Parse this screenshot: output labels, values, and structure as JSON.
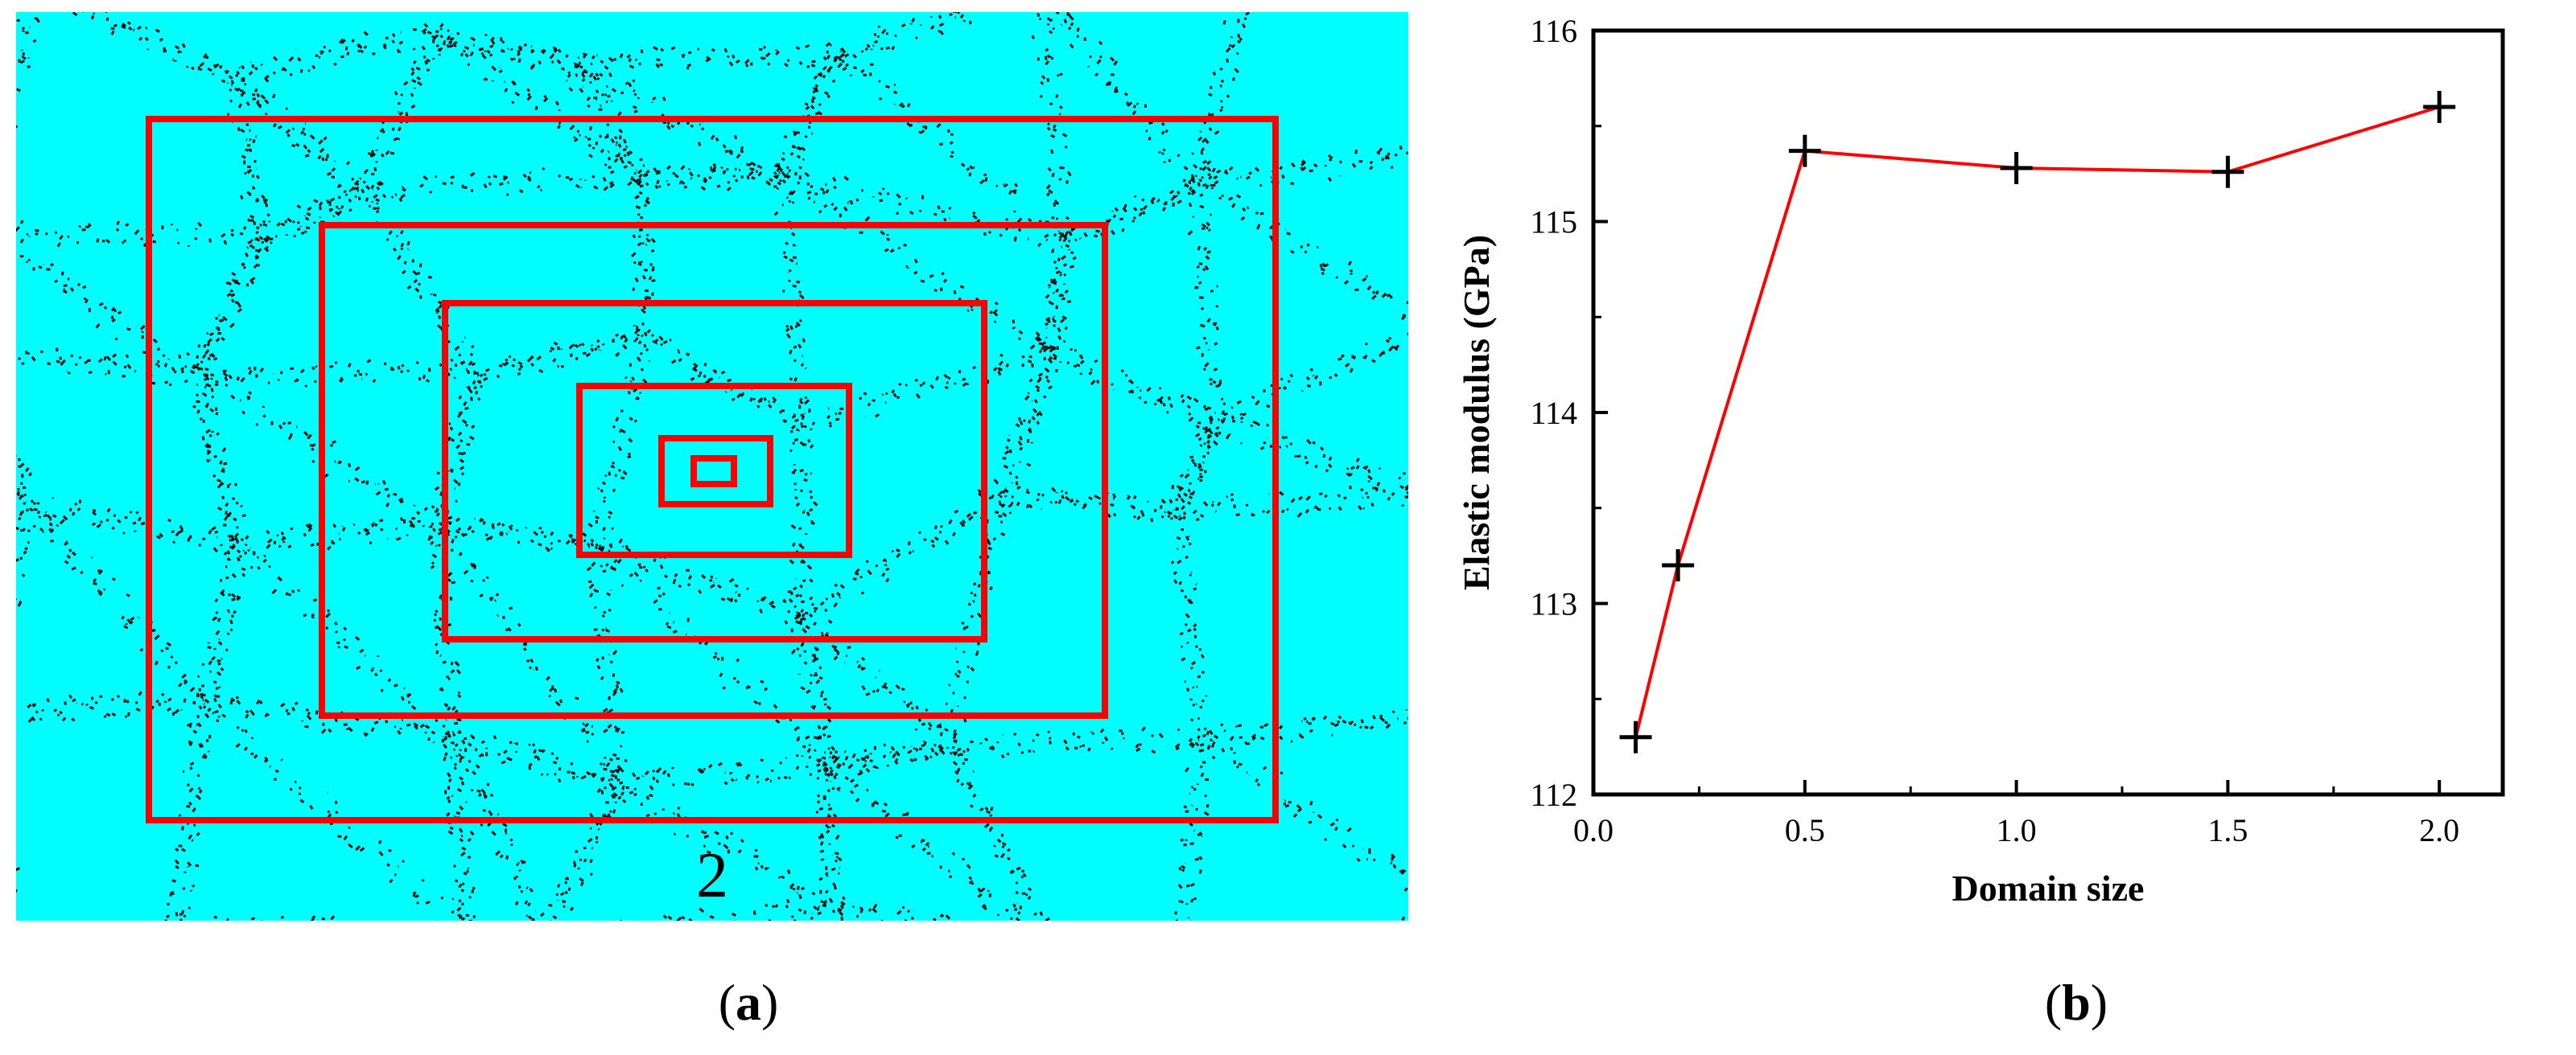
{
  "panel_a": {
    "background_color": "#00ffff",
    "box_color": "#ff0000",
    "label": "2"
  },
  "panel_b": {
    "chart_data": {
      "type": "line",
      "xlabel": "Domain size",
      "ylabel": "Elastic modulus (GPa)",
      "xlim": [
        0.0,
        2.15
      ],
      "ylim": [
        112,
        116
      ],
      "xticks": [
        "0.0",
        "0.5",
        "1.0",
        "1.5",
        "2.0"
      ],
      "yticks": [
        "112",
        "113",
        "114",
        "115",
        "116"
      ],
      "line_color": "#ff0000",
      "marker": "plus",
      "grid": false,
      "x": [
        0.1,
        0.2,
        0.5,
        1.0,
        1.5,
        2.0
      ],
      "y": [
        112.3,
        113.2,
        115.37,
        115.28,
        115.26,
        115.6
      ]
    }
  },
  "captions": {
    "a_open": "(",
    "a_letter": "a",
    "a_close": ")",
    "b_open": "(",
    "b_letter": "b",
    "b_close": ")"
  }
}
